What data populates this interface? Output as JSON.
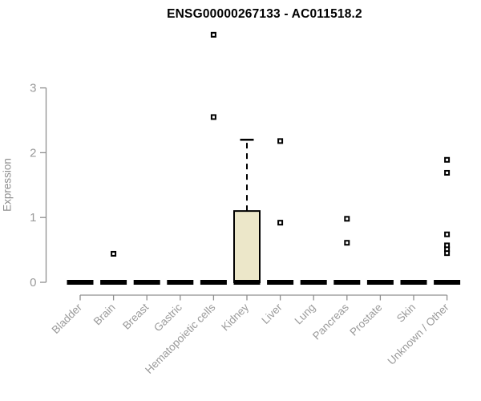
{
  "chart_data": {
    "type": "boxplot",
    "title": "ENSG00000267133 - AC011518.2",
    "ylabel": "Expression",
    "xlabel": "",
    "ylim": [
      0,
      3
    ],
    "yticks": [
      0,
      1,
      2,
      3
    ],
    "grid": false,
    "legend_position": "none",
    "categories": [
      "Bladder",
      "Brain",
      "Breast",
      "Gastric",
      "Hematopoietic cells",
      "Kidney",
      "Liver",
      "Lung",
      "Pancreas",
      "Prostate",
      "Skin",
      "Unknown / Other"
    ],
    "series": [
      {
        "category": "Bladder",
        "whisker_low": 0,
        "q1": 0,
        "median": 0,
        "q3": 0,
        "whisker_high": 0,
        "outliers": []
      },
      {
        "category": "Brain",
        "whisker_low": 0,
        "q1": 0,
        "median": 0,
        "q3": 0,
        "whisker_high": 0,
        "outliers": [
          0.44
        ]
      },
      {
        "category": "Breast",
        "whisker_low": 0,
        "q1": 0,
        "median": 0,
        "q3": 0,
        "whisker_high": 0,
        "outliers": []
      },
      {
        "category": "Gastric",
        "whisker_low": 0,
        "q1": 0,
        "median": 0,
        "q3": 0,
        "whisker_high": 0,
        "outliers": []
      },
      {
        "category": "Hematopoietic cells",
        "whisker_low": 0,
        "q1": 0,
        "median": 0,
        "q3": 0,
        "whisker_high": 0,
        "outliers": [
          3.82,
          2.55
        ]
      },
      {
        "category": "Kidney",
        "whisker_low": 0,
        "q1": 0,
        "median": 0,
        "q3": 1.1,
        "whisker_high": 2.2,
        "outliers": []
      },
      {
        "category": "Liver",
        "whisker_low": 0,
        "q1": 0,
        "median": 0,
        "q3": 0,
        "whisker_high": 0,
        "outliers": [
          2.18,
          0.92
        ]
      },
      {
        "category": "Lung",
        "whisker_low": 0,
        "q1": 0,
        "median": 0,
        "q3": 0,
        "whisker_high": 0,
        "outliers": []
      },
      {
        "category": "Pancreas",
        "whisker_low": 0,
        "q1": 0,
        "median": 0,
        "q3": 0,
        "whisker_high": 0,
        "outliers": [
          0.98,
          0.61
        ]
      },
      {
        "category": "Prostate",
        "whisker_low": 0,
        "q1": 0,
        "median": 0,
        "q3": 0,
        "whisker_high": 0,
        "outliers": []
      },
      {
        "category": "Skin",
        "whisker_low": 0,
        "q1": 0,
        "median": 0,
        "q3": 0,
        "whisker_high": 0,
        "outliers": []
      },
      {
        "category": "Unknown / Other",
        "whisker_low": 0,
        "q1": 0,
        "median": 0,
        "q3": 0,
        "whisker_high": 0,
        "outliers": [
          1.89,
          1.69,
          0.74,
          0.57,
          0.51,
          0.45
        ]
      }
    ],
    "colors": {
      "box_fill": "#ece7c9",
      "box_stroke": "#000000",
      "median": "#000000",
      "whisker": "#000000",
      "outlier_fill": "#ffffff",
      "outlier_stroke": "#000000",
      "axis": "#8f8f8f",
      "tick_label": "#9a9a9a",
      "title": "#000000",
      "background": "#ffffff"
    }
  }
}
